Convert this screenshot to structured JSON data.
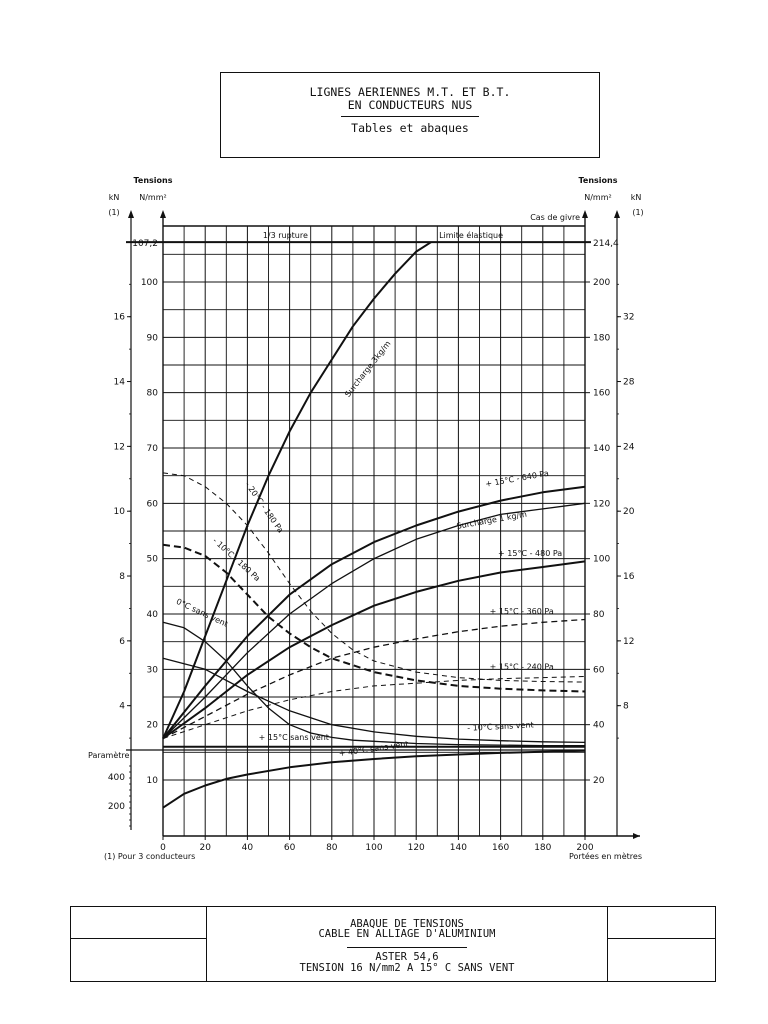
{
  "header": {
    "line1": "LIGNES AERIENNES M.T. ET B.T.",
    "line2": "EN CONDUCTEURS NUS",
    "line3": "Tables et abaques"
  },
  "cartouche": {
    "line1": "ABAQUE DE TENSIONS",
    "line2": "CABLE EN ALLIAGE D'ALUMINIUM",
    "line3": "ASTER 54,6",
    "line4": "TENSION 16 N/mm2 A 15° C SANS VENT"
  },
  "chart_data": {
    "type": "line",
    "xlabel": "Portées en mètres",
    "x_ticks": [
      0,
      20,
      40,
      60,
      80,
      100,
      120,
      140,
      160,
      180,
      200
    ],
    "xlim": [
      0,
      200
    ],
    "left_axis": {
      "title": "Tensions",
      "unit": "N/mm²",
      "ticks": [
        10,
        20,
        30,
        40,
        50,
        60,
        70,
        80,
        90,
        100
      ],
      "special_tick": "107,2",
      "ylim": [
        5,
        107.2
      ]
    },
    "right_axis": {
      "title": "Tensions",
      "unit": "N/mm²",
      "ticks": [
        20,
        40,
        60,
        80,
        100,
        120,
        140,
        160,
        180,
        200
      ],
      "special_tick": "214,4",
      "top_label": "Cas de givre"
    },
    "left_kn_axis": {
      "unit": "kN",
      "note_ref": "(1)",
      "ticks": [
        4,
        6,
        8,
        10,
        12,
        14,
        16
      ]
    },
    "right_kn_axis": {
      "unit": "kN",
      "note_ref": "(1)",
      "ticks": [
        8,
        12,
        16,
        20,
        24,
        28,
        32
      ]
    },
    "parametre_axis": {
      "label": "Paramètre",
      "ticks": [
        200,
        400
      ]
    },
    "footnote": "(1) Pour 3 conducteurs",
    "reference_lines": [
      {
        "label": "1/3 rupture",
        "y": 107.2
      },
      {
        "label": "Limite élastique",
        "y": 107.2
      }
    ],
    "series": [
      {
        "name": "Surcharge 3kg/m",
        "style": "solid-thick",
        "x": [
          0,
          10,
          20,
          30,
          40,
          50,
          60,
          70,
          80,
          90,
          100,
          110,
          120,
          127
        ],
        "y": [
          17.5,
          26,
          36,
          46,
          56,
          65,
          73,
          80,
          86,
          92,
          97,
          101.5,
          105.5,
          107.2
        ]
      },
      {
        "name": "+ 15°C - 640 Pa",
        "style": "solid-thick",
        "x": [
          0,
          20,
          40,
          60,
          80,
          100,
          120,
          140,
          160,
          180,
          200
        ],
        "y": [
          17.5,
          27,
          36,
          43.5,
          49,
          53,
          56,
          58.5,
          60.5,
          62,
          63
        ]
      },
      {
        "name": "Surcharge 1 kg/m",
        "style": "solid",
        "x": [
          0,
          20,
          40,
          60,
          80,
          100,
          120,
          140,
          160,
          180,
          200
        ],
        "y": [
          17.5,
          25,
          33,
          40,
          45.5,
          50,
          53.5,
          56,
          58,
          59,
          60
        ]
      },
      {
        "name": "+ 15°C - 480 Pa",
        "style": "solid-thick",
        "x": [
          0,
          20,
          40,
          60,
          80,
          100,
          120,
          140,
          160,
          180,
          200
        ],
        "y": [
          17.5,
          23,
          29,
          34,
          38,
          41.5,
          44,
          46,
          47.5,
          48.5,
          49.5
        ]
      },
      {
        "name": "+ 15°C - 360 Pa",
        "style": "dashed",
        "x": [
          0,
          20,
          40,
          60,
          80,
          100,
          120,
          140,
          160,
          180,
          200
        ],
        "y": [
          17.5,
          21.5,
          25.5,
          29,
          32,
          34,
          35.5,
          36.8,
          37.8,
          38.5,
          39
        ]
      },
      {
        "name": "+ 15°C - 240 Pa",
        "style": "dashed-thin",
        "x": [
          0,
          20,
          40,
          60,
          80,
          100,
          120,
          140,
          160,
          180,
          200
        ],
        "y": [
          17.5,
          20,
          22.5,
          24.5,
          26,
          27,
          27.5,
          28,
          28.3,
          28.5,
          28.7
        ]
      },
      {
        "name": "- 20°C - 180 Pa",
        "style": "dashed-thin",
        "x": [
          0,
          10,
          20,
          30,
          40,
          50,
          60,
          70,
          80,
          90,
          100,
          120,
          140,
          160,
          180,
          200
        ],
        "y": [
          65.5,
          65,
          63,
          60,
          56,
          51,
          45.5,
          40.5,
          36.5,
          33.5,
          31.5,
          29.5,
          28.5,
          28,
          27.8,
          27.7
        ]
      },
      {
        "name": "- 10°C - 180 Pa",
        "style": "dashed-thick",
        "x": [
          0,
          10,
          20,
          30,
          40,
          50,
          60,
          70,
          80,
          100,
          120,
          140,
          160,
          180,
          200
        ],
        "y": [
          52.5,
          52,
          50.5,
          47.5,
          43.5,
          39.5,
          36.5,
          34,
          32,
          29.5,
          28,
          27,
          26.5,
          26.2,
          26
        ]
      },
      {
        "name": "0°C sans vent",
        "style": "solid",
        "x": [
          0,
          10,
          20,
          30,
          40,
          50,
          60,
          70,
          80,
          90,
          100,
          120,
          140,
          160,
          180,
          200
        ],
        "y": [
          38.5,
          37.5,
          35,
          31.5,
          27,
          23,
          20,
          18.5,
          17.7,
          17.2,
          17,
          16.6,
          16.4,
          16.3,
          16.2,
          16.2
        ]
      },
      {
        "name": "- 10°C sans vent",
        "style": "solid",
        "x": [
          0,
          20,
          40,
          60,
          80,
          100,
          120,
          140,
          160,
          180,
          200
        ],
        "y": [
          32,
          30,
          26,
          22.5,
          20,
          18.7,
          17.9,
          17.4,
          17.1,
          16.9,
          16.8
        ]
      },
      {
        "name": "+ 15°C sans vent",
        "style": "solid-thick",
        "x": [
          0,
          200
        ],
        "y": [
          16,
          16
        ]
      },
      {
        "name": "+ 40°C sans vent",
        "style": "solid-thick",
        "x": [
          0,
          10,
          20,
          30,
          40,
          60,
          80,
          100,
          120,
          140,
          160,
          180,
          200
        ],
        "y": [
          5,
          7.5,
          9,
          10.2,
          11,
          12.3,
          13.2,
          13.8,
          14.3,
          14.6,
          14.9,
          15.1,
          15.3
        ]
      }
    ]
  }
}
